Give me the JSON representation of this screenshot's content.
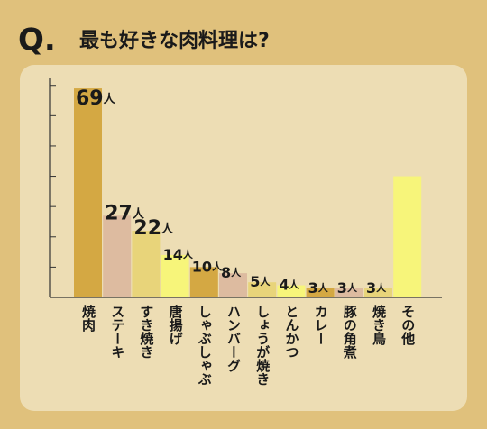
{
  "chart_data": {
    "type": "bar",
    "title_prefix": "Q.",
    "title": "最も好きな肉料理は?",
    "categories": [
      "焼肉",
      "ステーキ",
      "すき焼き",
      "唐揚げ",
      "しゃぶしゃぶ",
      "ハンバーグ",
      "しょうが焼き",
      "とんかつ",
      "カレー",
      "豚の角煮",
      "焼き鳥",
      "その他"
    ],
    "values": [
      69,
      27,
      22,
      14,
      10,
      8,
      5,
      4,
      3,
      3,
      3,
      40
    ],
    "value_labels": [
      "69人",
      "27人",
      "22人",
      "14人",
      "10人",
      "8人",
      "5人",
      "4人",
      "3人",
      "3人",
      "3人",
      null
    ],
    "colors": [
      "#D4A843",
      "#DDBBA0",
      "#E8D47A",
      "#F7F57A",
      "#D4A843",
      "#DDBBA0",
      "#E8D47A",
      "#F7F57A",
      "#D4A843",
      "#DDBBA0",
      "#E8D47A",
      "#F7F57A"
    ],
    "ylim": [
      0,
      72
    ],
    "yticks": [
      0,
      10,
      20,
      30,
      40,
      50,
      60,
      70
    ]
  }
}
